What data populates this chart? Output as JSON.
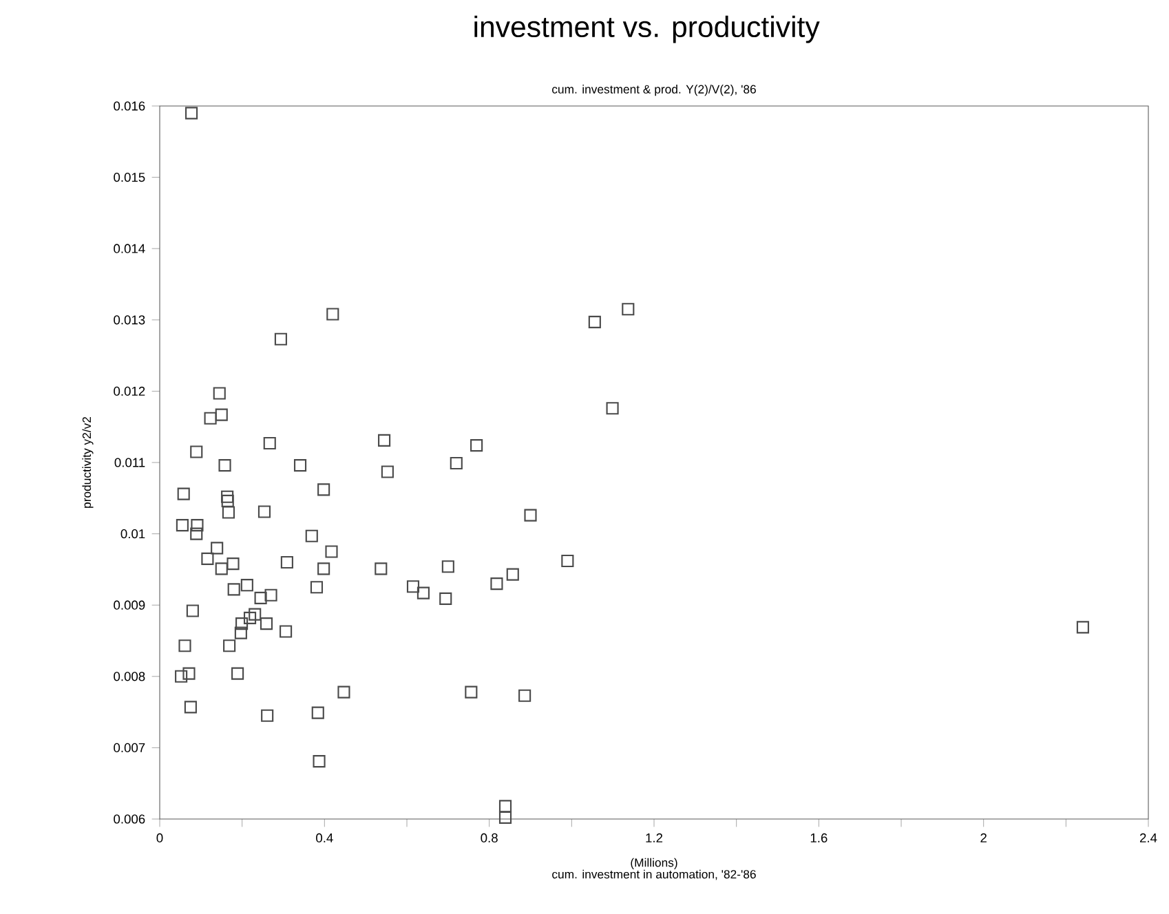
{
  "chart_data": {
    "type": "scatter",
    "title": "investment vs. productivity",
    "subtitle": "cum. investment & prod. Y(2)/V(2), '86",
    "xlabel": "cum. investment in automation, '82-'86",
    "ylabel": "productivity y2/v2",
    "annotations": [
      "(Millions)"
    ],
    "marker": "square",
    "xlim": [
      0,
      2.4
    ],
    "ylim": [
      0.006,
      0.016
    ],
    "xticks": [
      0,
      {
        "value": 0.2,
        "label": null
      },
      0.4,
      {
        "value": 0.6,
        "label": null
      },
      0.8,
      {
        "value": 1.0,
        "label": null
      },
      1.2,
      {
        "value": 1.4,
        "label": null
      },
      1.6,
      {
        "value": 1.8,
        "label": null
      },
      2,
      {
        "value": 2.2,
        "label": null
      },
      2.4
    ],
    "yticks": [
      0.006,
      0.007,
      0.008,
      0.009,
      0.01,
      0.011,
      0.012,
      0.013,
      0.014,
      0.015,
      0.016
    ],
    "series": [
      {
        "color": "#4a4a4a",
        "x": [
          0.077,
          0.42,
          0.294,
          1.056,
          1.137,
          0.145,
          0.123,
          0.15,
          1.099,
          0.089,
          0.267,
          0.545,
          0.769,
          0.158,
          0.341,
          0.72,
          0.553,
          0.058,
          0.398,
          0.164,
          0.165,
          0.167,
          0.254,
          0.9,
          0.055,
          0.091,
          0.089,
          0.369,
          0.139,
          0.417,
          0.116,
          0.178,
          0.15,
          0.309,
          0.398,
          0.537,
          0.7,
          0.99,
          0.857,
          0.818,
          0.615,
          0.64,
          0.694,
          0.381,
          0.18,
          0.212,
          0.245,
          0.27,
          0.08,
          0.231,
          0.219,
          0.259,
          0.199,
          0.197,
          0.306,
          0.061,
          0.169,
          0.052,
          0.071,
          0.189,
          0.447,
          0.756,
          0.886,
          0.075,
          0.261,
          0.384,
          0.387,
          0.839,
          0.839,
          2.241
        ],
        "values": [
          0.0159,
          0.01308,
          0.01273,
          0.01297,
          0.01315,
          0.01197,
          0.01162,
          0.01167,
          0.01176,
          0.01115,
          0.01127,
          0.01131,
          0.01124,
          0.01096,
          0.01096,
          0.01099,
          0.01087,
          0.01056,
          0.01062,
          0.01052,
          0.01046,
          0.0103,
          0.01031,
          0.01026,
          0.01012,
          0.01012,
          0.01,
          0.00997,
          0.0098,
          0.00975,
          0.00965,
          0.00958,
          0.00951,
          0.0096,
          0.00951,
          0.00951,
          0.00954,
          0.00962,
          0.00943,
          0.0093,
          0.00926,
          0.00917,
          0.00909,
          0.00925,
          0.00922,
          0.00928,
          0.0091,
          0.00914,
          0.00892,
          0.00887,
          0.00882,
          0.00874,
          0.00874,
          0.00861,
          0.00863,
          0.00843,
          0.00843,
          0.008,
          0.00804,
          0.00804,
          0.00778,
          0.00778,
          0.00773,
          0.00757,
          0.00745,
          0.00749,
          0.00681,
          0.00618,
          0.00602,
          0.00869
        ]
      }
    ]
  }
}
